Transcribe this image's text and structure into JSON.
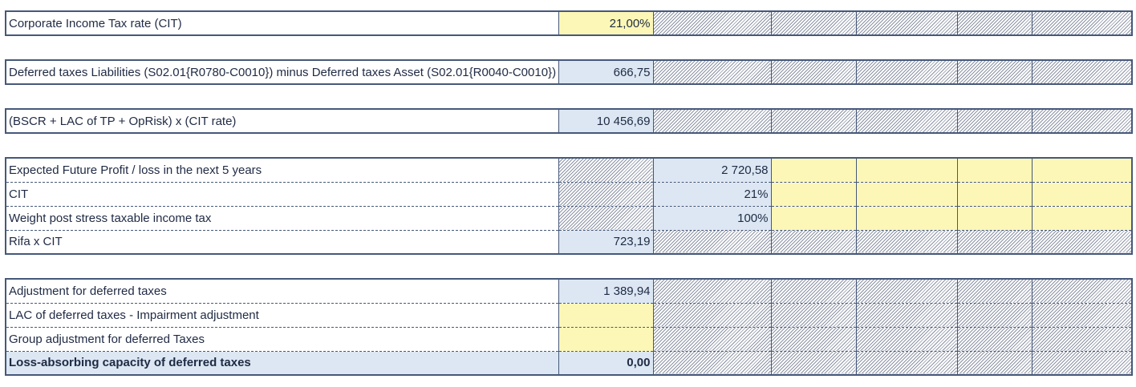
{
  "rows": {
    "cit_rate": {
      "label": "Corporate Income Tax rate (CIT)",
      "value": "21,00%"
    },
    "dtl_minus_dta": {
      "label": "Deferred taxes Liabilities (S02.01{R0780-C0010}) minus Deferred taxes Asset (S02.01{R0040-C0010})",
      "value": "666,75"
    },
    "bscr_cit": {
      "label": "(BSCR + LAC of TP + OpRisk) x (CIT rate)",
      "value": "10 456,69"
    },
    "future_profit": {
      "label": "Expected Future Profit / loss in the next 5 years",
      "value": "2 720,58"
    },
    "cit": {
      "label": "CIT",
      "value": "21%"
    },
    "weight": {
      "label": "Weight post stress taxable income tax",
      "value": "100%"
    },
    "rifa_cit": {
      "label": "Rifa x CIT",
      "value": "723,19"
    },
    "adjustment": {
      "label": "Adjustment for deferred taxes",
      "value": "1 389,94"
    },
    "impairment": {
      "label": "LAC of deferred taxes - Impairment adjustment",
      "value": ""
    },
    "group_adjustment": {
      "label": "Group adjustment for deferred Taxes",
      "value": ""
    },
    "lac_total": {
      "label": "Loss-absorbing capacity of deferred taxes",
      "value": "0,00"
    }
  },
  "colors": {
    "input_yellow": "#fcf7b6",
    "calc_blue": "#dce7f3",
    "border": "#46587a",
    "hatch": "#8b93a4"
  }
}
